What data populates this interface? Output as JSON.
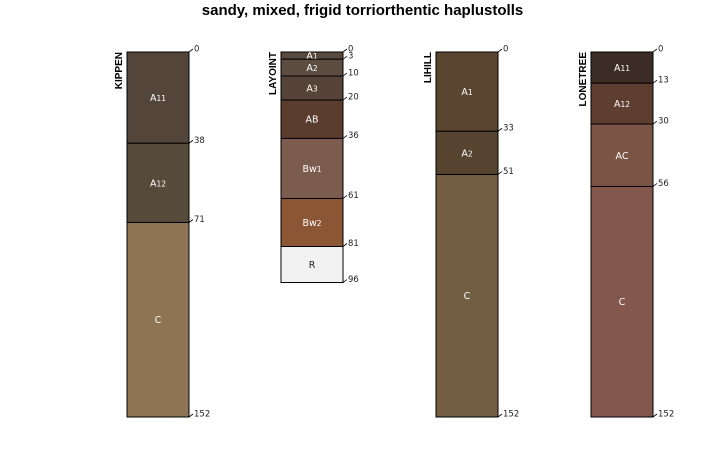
{
  "title": "sandy, mixed, frigid torriorthentic haplustolls",
  "profiles": [
    {
      "name": "KIPPEN",
      "horizons": [
        {
          "name": "A11",
          "top": 0,
          "bottom": 38,
          "color": "#54453A"
        },
        {
          "name": "A12",
          "top": 38,
          "bottom": 71,
          "color": "#564A3B"
        },
        {
          "name": "C",
          "top": 71,
          "bottom": 152,
          "color": "#8E7452"
        }
      ]
    },
    {
      "name": "LAYOINT",
      "horizons": [
        {
          "name": "A1",
          "top": 0,
          "bottom": 3,
          "color": "#5A4A3E"
        },
        {
          "name": "A2",
          "top": 3,
          "bottom": 10,
          "color": "#5D4C40"
        },
        {
          "name": "A3",
          "top": 10,
          "bottom": 20,
          "color": "#564338"
        },
        {
          "name": "AB",
          "top": 20,
          "bottom": 36,
          "color": "#5B3D2F"
        },
        {
          "name": "Bw1",
          "top": 36,
          "bottom": 61,
          "color": "#7C5C4E"
        },
        {
          "name": "Bw2",
          "top": 61,
          "bottom": 81,
          "color": "#8C5533"
        },
        {
          "name": "R",
          "top": 81,
          "bottom": 96,
          "color": "#F1F1F1"
        }
      ]
    },
    {
      "name": "LIHILL",
      "horizons": [
        {
          "name": "A1",
          "top": 0,
          "bottom": 33,
          "color": "#5A4530"
        },
        {
          "name": "A2",
          "top": 33,
          "bottom": 51,
          "color": "#564430"
        },
        {
          "name": "C",
          "top": 51,
          "bottom": 152,
          "color": "#735E42"
        }
      ]
    },
    {
      "name": "LONETREE",
      "horizons": [
        {
          "name": "A11",
          "top": 0,
          "bottom": 13,
          "color": "#3C2C26"
        },
        {
          "name": "A12",
          "top": 13,
          "bottom": 30,
          "color": "#5D3E31"
        },
        {
          "name": "AC",
          "top": 30,
          "bottom": 56,
          "color": "#7C5446"
        },
        {
          "name": "C",
          "top": 56,
          "bottom": 152,
          "color": "#83574B"
        }
      ]
    }
  ]
}
